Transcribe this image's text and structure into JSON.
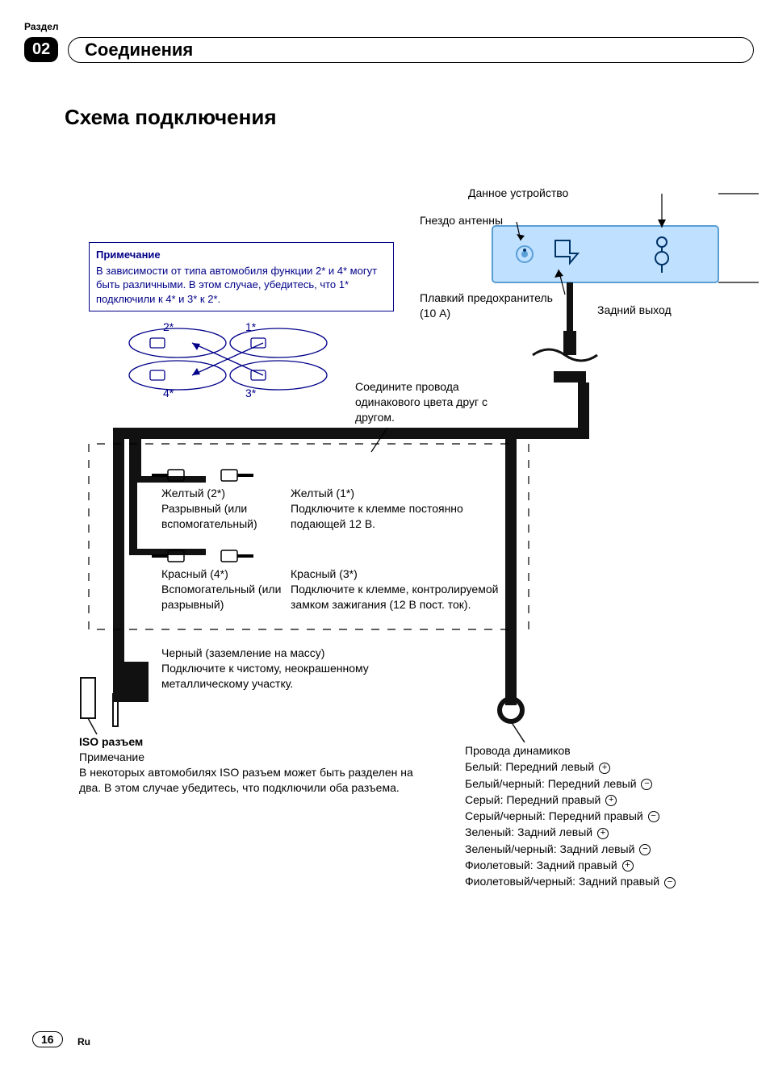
{
  "header": {
    "section_label": "Раздел",
    "section_number": "02",
    "section_title": "Соединения"
  },
  "main_title": "Схема подключения",
  "note_box": {
    "title": "Примечание",
    "body": "В зависимости от типа автомобиля функции 2* и 4* могут быть различными. В этом случае, убедитесь, что 1* подключили к 4* и 3* к 2*."
  },
  "connector_labels": {
    "n1": "1*",
    "n2": "2*",
    "n3": "3*",
    "n4": "4*"
  },
  "device_labels": {
    "device": "Данное устройство",
    "antenna": "Гнездо антенны",
    "fuse": "Плавкий предохранитель (10 А)",
    "rear_out": "Задний выход"
  },
  "wire_instruction": "Соедините провода одинакового цвета друг с другом.",
  "yellow": {
    "left_title": "Желтый (2*)",
    "left_body": "Разрывный (или вспомогательный)",
    "right_title": "Желтый (1*)",
    "right_body": "Подключите к клемме постоянно подающей 12 В."
  },
  "red": {
    "left_title": "Красный (4*)",
    "left_body": "Вспомогательный (или разрывный)",
    "right_title": "Красный (3*)",
    "right_body": "Подключите к клемме, контролируемой замком зажигания (12 В пост. ток)."
  },
  "black": {
    "title": "Черный (заземление на массу)",
    "body": "Подключите к чистому, неокрашенному металлическому участку."
  },
  "iso": {
    "title": "ISO разъем",
    "note_label": "Примечание",
    "body": "В некоторых автомобилях ISO разъем может быть разделен на два. В этом случае убедитесь, что подключили оба разъема."
  },
  "speaker_wires": {
    "title": "Провода динамиков",
    "items": [
      {
        "label": "Белый: Передний левый",
        "polarity": "＋"
      },
      {
        "label": "Белый/черный: Передний левый",
        "polarity": "－"
      },
      {
        "label": "Серый: Передний правый",
        "polarity": "＋"
      },
      {
        "label": "Серый/черный: Передний правый",
        "polarity": "－"
      },
      {
        "label": "Зеленый: Задний левый",
        "polarity": "＋"
      },
      {
        "label": "Зеленый/черный: Задний левый",
        "polarity": "－"
      },
      {
        "label": "Фиолетовый: Задний правый",
        "polarity": "＋"
      },
      {
        "label": "Фиолетовый/черный: Задний правый",
        "polarity": "－"
      }
    ]
  },
  "footer": {
    "page": "16",
    "lang": "Ru"
  },
  "colors": {
    "text": "#000000",
    "accent": "#000088",
    "device_fill": "#bfe0ff",
    "device_stroke": "#5a9fd6",
    "cable": "#111111"
  }
}
